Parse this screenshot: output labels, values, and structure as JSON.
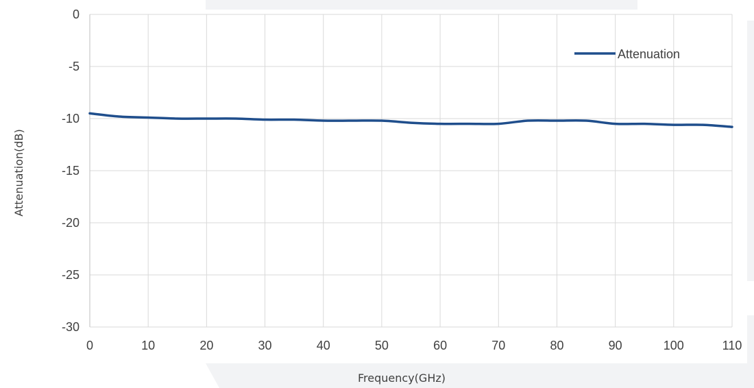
{
  "chart_data": {
    "type": "line",
    "xlabel": "Frequency(GHz)",
    "ylabel": "Attenuation(dB)",
    "xlim": [
      0,
      110
    ],
    "ylim": [
      -30,
      0
    ],
    "x_ticks": [
      "0",
      "10",
      "20",
      "30",
      "40",
      "50",
      "60",
      "70",
      "80",
      "90",
      "100",
      "110"
    ],
    "y_ticks": [
      "0",
      "-5",
      "-10",
      "-15",
      "-20",
      "-25",
      "-30"
    ],
    "grid": true,
    "legend_position": "top-right",
    "series": [
      {
        "name": "Attenuation",
        "color": "#1f4e8c",
        "x": [
          0,
          5,
          10,
          15,
          20,
          25,
          30,
          35,
          40,
          45,
          50,
          55,
          60,
          65,
          70,
          75,
          80,
          85,
          90,
          95,
          100,
          105,
          110
        ],
        "y": [
          -9.5,
          -9.8,
          -9.9,
          -10.0,
          -10.0,
          -10.0,
          -10.1,
          -10.1,
          -10.2,
          -10.2,
          -10.2,
          -10.4,
          -10.5,
          -10.5,
          -10.5,
          -10.2,
          -10.2,
          -10.2,
          -10.5,
          -10.5,
          -10.6,
          -10.6,
          -10.8
        ]
      }
    ]
  }
}
